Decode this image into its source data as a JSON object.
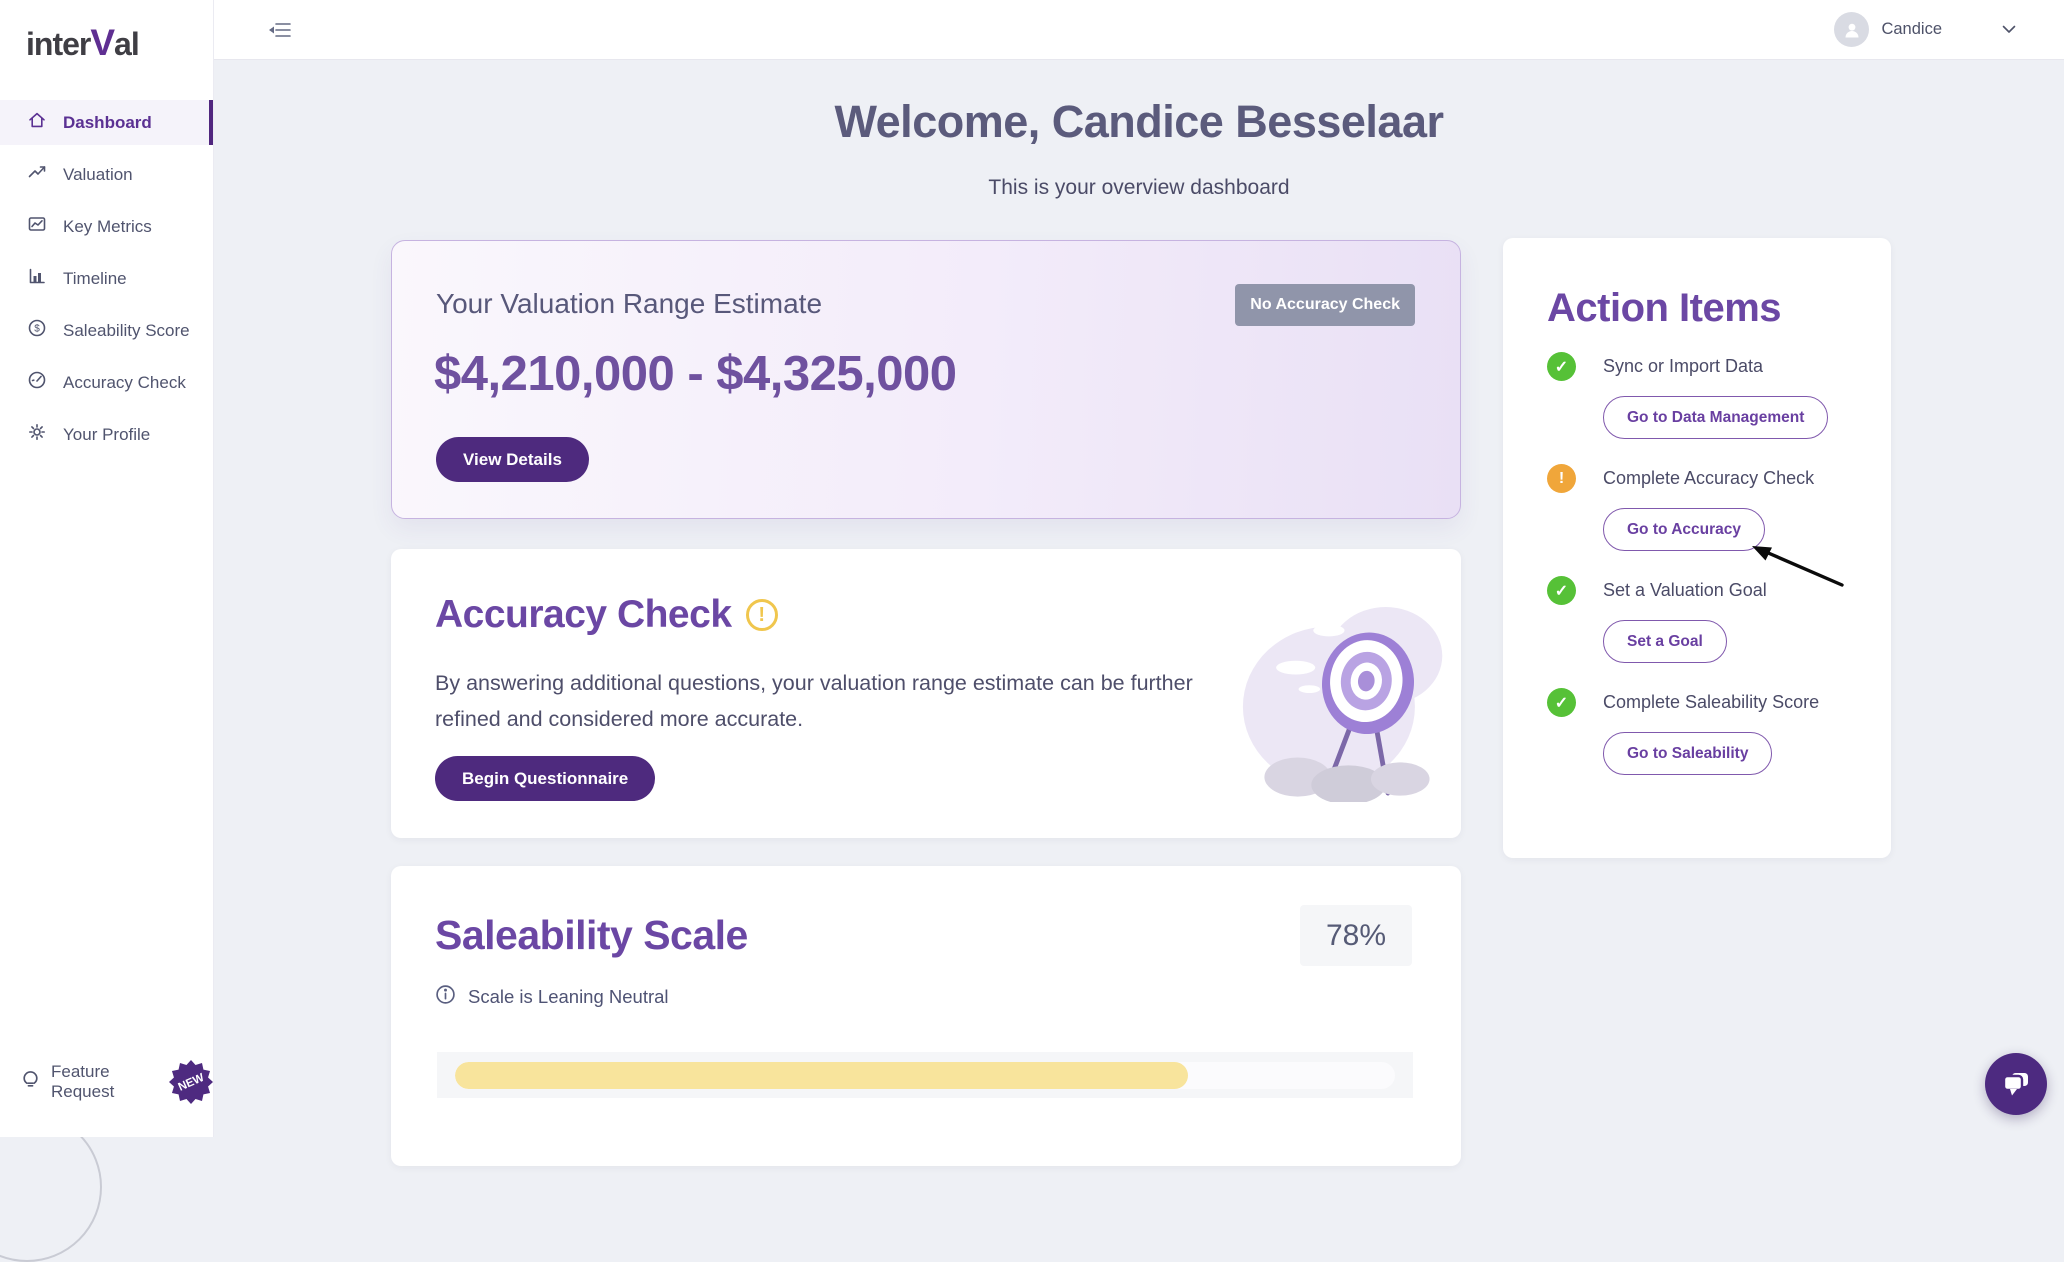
{
  "brand": {
    "logo_prefix": "inter",
    "logo_v": "V",
    "logo_suffix": "al"
  },
  "topbar": {
    "user_name": "Candice"
  },
  "sidebar": {
    "items": [
      {
        "label": "Dashboard",
        "icon": "home-icon",
        "active": true
      },
      {
        "label": "Valuation",
        "icon": "trending-up-icon",
        "active": false
      },
      {
        "label": "Key Metrics",
        "icon": "chart-box-icon",
        "active": false
      },
      {
        "label": "Timeline",
        "icon": "bar-chart-icon",
        "active": false
      },
      {
        "label": "Saleability Score",
        "icon": "dollar-circle-icon",
        "active": false
      },
      {
        "label": "Accuracy Check",
        "icon": "gauge-icon",
        "active": false
      },
      {
        "label": "Your Profile",
        "icon": "gear-icon",
        "active": false
      }
    ],
    "feature_request": {
      "label": "Feature Request",
      "badge": "NEW"
    }
  },
  "welcome": {
    "title": "Welcome, Candice Besselaar",
    "subtitle": "This is your overview dashboard"
  },
  "valuation_card": {
    "title": "Your Valuation Range Estimate",
    "badge": "No Accuracy Check",
    "range": "$4,210,000 - $4,325,000",
    "cta": "View Details"
  },
  "accuracy_card": {
    "title": "Accuracy Check",
    "warning_glyph": "!",
    "body": "By answering additional questions, your valuation range estimate can be further refined and considered more accurate.",
    "cta": "Begin Questionnaire"
  },
  "saleability_card": {
    "title": "Saleability Scale",
    "percent": "78%",
    "percent_value": 78,
    "status": "Scale is Leaning Neutral",
    "bar_color": "#f8e49c"
  },
  "action_items": {
    "title": "Action Items",
    "items": [
      {
        "status": "done",
        "label": "Sync or Import Data",
        "cta": "Go to Data Management"
      },
      {
        "status": "warning",
        "label": "Complete Accuracy Check",
        "cta": "Go to Accuracy"
      },
      {
        "status": "done",
        "label": "Set a Valuation Goal",
        "cta": "Set a Goal"
      },
      {
        "status": "done",
        "label": "Complete Saleability Score",
        "cta": "Go to Saleability"
      }
    ]
  },
  "colors": {
    "brand_purple": "#4e2a7e",
    "heading_purple": "#6b47a4",
    "success_green": "#56c137",
    "warning_orange": "#f0a63a",
    "badge_gray": "#9095aa",
    "progress_yellow": "#f8e49c"
  }
}
